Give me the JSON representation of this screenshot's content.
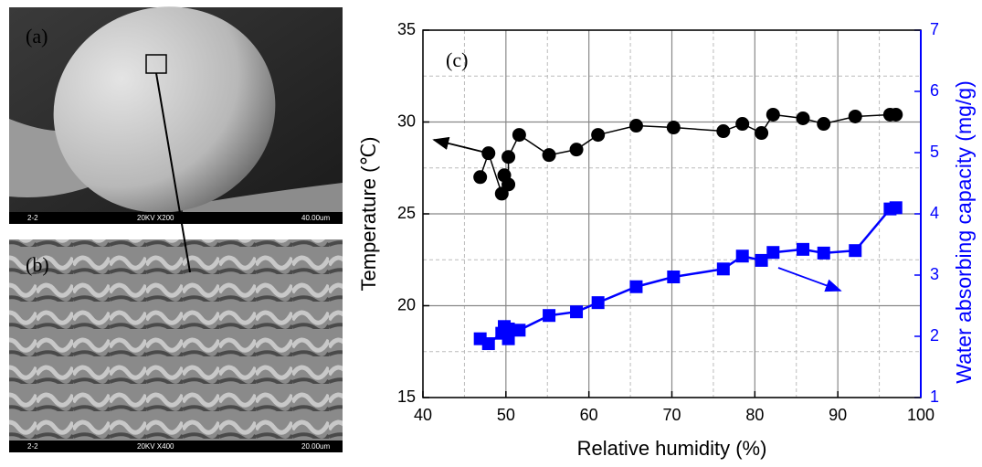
{
  "images": [
    {
      "label": "(a)",
      "info": [
        "2-2",
        "20KV X200",
        "40.00um"
      ]
    },
    {
      "label": "(b)",
      "info": [
        "2-2",
        "20KV X400",
        "20.00um"
      ]
    }
  ],
  "chart_data": {
    "type": "line",
    "annotation": "(c)",
    "x_label": "Relative humidity (%)",
    "y_label": "Temperature (℃)",
    "y2_label": "Water absorbing capacity (mg/g)",
    "xlim": [
      40,
      100
    ],
    "xticks": [
      40,
      50,
      60,
      70,
      80,
      90,
      100
    ],
    "ylim": [
      15,
      35
    ],
    "yticks": [
      15,
      20,
      25,
      30,
      35
    ],
    "y2lim": [
      1,
      7
    ],
    "y2ticks": [
      1,
      2,
      3,
      4,
      5,
      6,
      7
    ],
    "grid": true,
    "y_color": "#000000",
    "y2_color": "#0000ff",
    "series": [
      {
        "color": "#000000",
        "marker": "circle",
        "x": [
          46.9,
          47.9,
          49.5,
          49.8,
          50.3,
          50.3,
          51.6,
          55.2,
          58.5,
          61.1,
          65.7,
          70.2,
          76.2,
          78.5,
          80.8,
          82.2,
          85.8,
          88.3,
          92.1,
          96.3,
          97.0
        ],
        "values": [
          27.0,
          28.3,
          26.1,
          27.1,
          26.6,
          28.1,
          29.3,
          28.2,
          28.5,
          29.3,
          29.8,
          29.7,
          29.5,
          29.9,
          29.4,
          30.4,
          30.2,
          29.9,
          30.3,
          30.4,
          30.4
        ]
      },
      {
        "color": "#0000ff",
        "marker": "square",
        "axis": "y2",
        "x": [
          46.9,
          47.9,
          49.5,
          49.8,
          50.3,
          50.3,
          51.6,
          55.2,
          58.5,
          61.1,
          65.7,
          70.2,
          76.2,
          78.5,
          80.8,
          82.2,
          85.8,
          88.3,
          92.1,
          96.3,
          97.0
        ],
        "values": [
          1.96,
          1.88,
          2.05,
          2.16,
          1.96,
          2.12,
          2.1,
          2.34,
          2.4,
          2.55,
          2.81,
          2.97,
          3.1,
          3.31,
          3.24,
          3.37,
          3.42,
          3.36,
          3.4,
          4.08,
          4.1
        ]
      }
    ]
  }
}
